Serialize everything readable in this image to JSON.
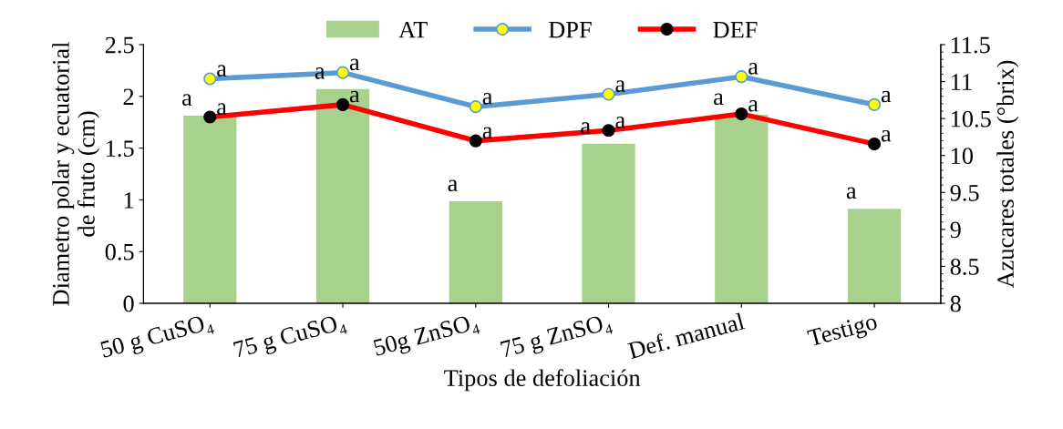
{
  "chart_data": {
    "type": "line",
    "xlabel": "Tipos de defoliación",
    "ylabel": "Diametro polar y ecuatorial\nde fruto (cm)",
    "y2label": "Azucares totales (°brix)",
    "categories": [
      "50 g CuSO₄",
      "75 g CuSO₄",
      "50g ZnSO₄",
      "75 g ZnSO₄",
      "Def. manual",
      "Testigo"
    ],
    "series": [
      {
        "name": "AT",
        "type": "bar",
        "axis": "y2",
        "color": "#a9d18e",
        "values": [
          10.54,
          10.9,
          9.38,
          10.16,
          10.55,
          9.28
        ],
        "value_labels": [
          "a",
          "a",
          "a",
          "a",
          "a",
          "a"
        ]
      },
      {
        "name": "DPF",
        "color": "#5b9bd5",
        "values": [
          2.17,
          2.23,
          1.9,
          2.02,
          2.19,
          1.92
        ],
        "value_labels": [
          "a",
          "a",
          "a",
          "a",
          "a",
          "a"
        ]
      },
      {
        "name": "DEF",
        "color": "#ff0000",
        "values": [
          1.8,
          1.92,
          1.57,
          1.67,
          1.83,
          1.54
        ],
        "value_labels": [
          "a",
          "a",
          "a",
          "a",
          "a",
          "a"
        ]
      }
    ],
    "ylim": [
      0,
      2.5
    ],
    "yticks": [
      0,
      0.5,
      1,
      1.5,
      2,
      2.5
    ],
    "y2lim": [
      8,
      11.5
    ],
    "y2ticks": [
      8,
      8.5,
      9,
      9.5,
      10,
      10.5,
      11,
      11.5
    ],
    "marker": "circle",
    "line_style": "solid",
    "grid": false,
    "legend": "top"
  }
}
